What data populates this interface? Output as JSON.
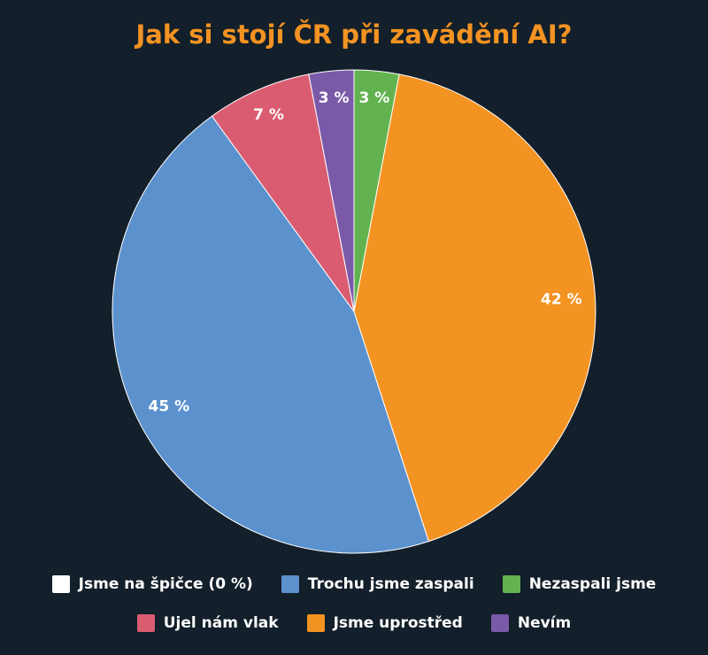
{
  "chart_data": {
    "type": "pie",
    "title": "Jak si stojí ČR při zavádění AI?",
    "legend_position": "bottom",
    "slices": [
      {
        "label": "Nezaspali jsme",
        "value": 3,
        "color": "#62b34f",
        "data_label": "3 %"
      },
      {
        "label": "Jsme uprostřed",
        "value": 42,
        "color": "#f39322",
        "data_label": "42 %"
      },
      {
        "label": "Trochu jsme zaspali",
        "value": 45,
        "color": "#5b91cd",
        "data_label": "45 %"
      },
      {
        "label": "Ujel nám vlak",
        "value": 7,
        "color": "#d95c70",
        "data_label": "7 %"
      },
      {
        "label": "Nevím",
        "value": 3,
        "color": "#7a5aa8",
        "data_label": "3 %"
      },
      {
        "label": "Jsme na špičce (0 %)",
        "value": 0,
        "color": "#ffffff",
        "data_label": ""
      }
    ],
    "legend_rows": [
      [
        "Jsme na špičce (0 %)",
        "Trochu jsme zaspali",
        "Nezaspali jsme"
      ],
      [
        "Ujel nám vlak",
        "Jsme uprostřed",
        "Nevím"
      ]
    ]
  }
}
